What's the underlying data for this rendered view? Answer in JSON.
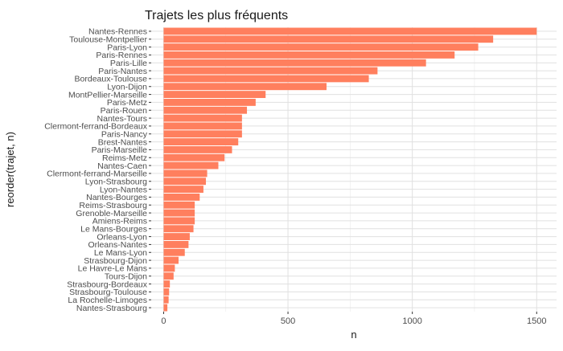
{
  "chart_data": {
    "type": "bar",
    "orientation": "horizontal",
    "title": "Trajets les plus fréquents",
    "xlabel": "n",
    "ylabel": "reorder(trajet, n)",
    "xlim": [
      -50,
      1580
    ],
    "x_ticks": [
      0,
      500,
      1000,
      1500
    ],
    "grid": true,
    "legend": "none",
    "bar_color": "#ff7f5e",
    "categories": [
      "Nantes-Rennes",
      "Toulouse-Montpellier",
      "Paris-Lyon",
      "Paris-Rennes",
      "Paris-Lille",
      "Paris-Nantes",
      "Bordeaux-Toulouse",
      "Lyon-Dijon",
      "MontPellier-Marseille",
      "Paris-Metz",
      "Paris-Rouen",
      "Nantes-Tours",
      "Clermont-ferrand-Bordeaux",
      "Paris-Nancy",
      "Brest-Nantes",
      "Paris-Marseille",
      "Reims-Metz",
      "Nantes-Caen",
      "Clermont-ferrand-Marseille",
      "Lyon-Strasbourg",
      "Lyon-Nantes",
      "Nantes-Bourges",
      "Reims-Strasbourg",
      "Grenoble-Marseille",
      "Amiens-Reims",
      "Le Mans-Bourges",
      "Orleans-Lyon",
      "Orleans-Nantes",
      "Le Mans-Lyon",
      "Strasbourg-Dijon",
      "Le Havre-Le Mans",
      "Tours-Dijon",
      "Strasbourg-Bordeaux",
      "Strasbourg-Toulouse",
      "La Rochelle-Limoges",
      "Nantes-Strasbourg"
    ],
    "values": [
      1500,
      1325,
      1265,
      1170,
      1055,
      860,
      825,
      655,
      410,
      370,
      335,
      315,
      315,
      315,
      300,
      275,
      245,
      220,
      175,
      170,
      160,
      145,
      125,
      125,
      125,
      120,
      105,
      100,
      85,
      60,
      45,
      40,
      25,
      22,
      20,
      15
    ]
  }
}
